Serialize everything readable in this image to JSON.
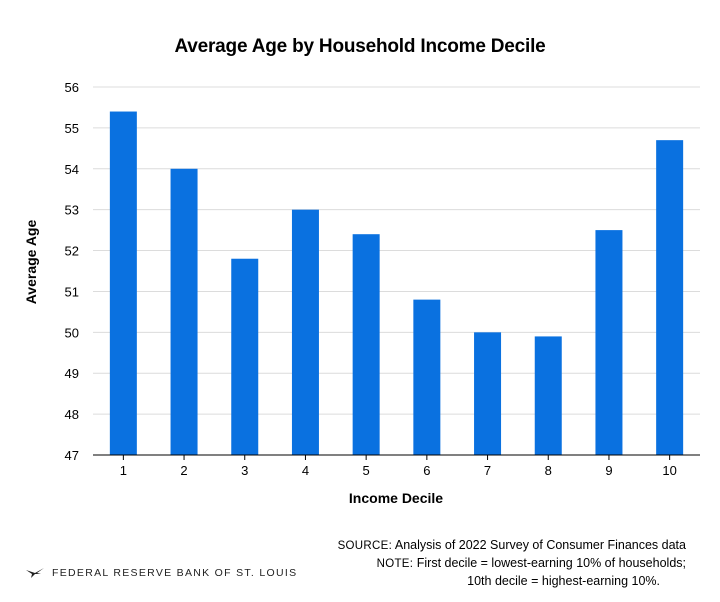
{
  "chart_data": {
    "type": "bar",
    "title": "Average Age by Household Income Decile",
    "xlabel": "Income Decile",
    "ylabel": "Average Age",
    "categories": [
      "1",
      "2",
      "3",
      "4",
      "5",
      "6",
      "7",
      "8",
      "9",
      "10"
    ],
    "values": [
      55.4,
      54.0,
      51.8,
      53.0,
      52.4,
      50.8,
      50.0,
      49.9,
      52.5,
      54.7
    ],
    "ylim": [
      47,
      56
    ],
    "yticks": [
      "47",
      "48",
      "49",
      "50",
      "51",
      "52",
      "53",
      "54",
      "55",
      "56"
    ],
    "grid": true,
    "bar_color": "#0a71e0"
  },
  "source": {
    "source_label": "SOURCE:",
    "source_text": "Analysis of 2022 Survey of Consumer Finances data",
    "note_label": "NOTE:",
    "note_text_1": "First decile = lowest-earning 10% of households;",
    "note_text_2": "10th decile = highest-earning 10%."
  },
  "brand": {
    "name": "FEDERAL RESERVE BANK OF ST. LOUIS",
    "icon": "eagle-logo-icon"
  }
}
